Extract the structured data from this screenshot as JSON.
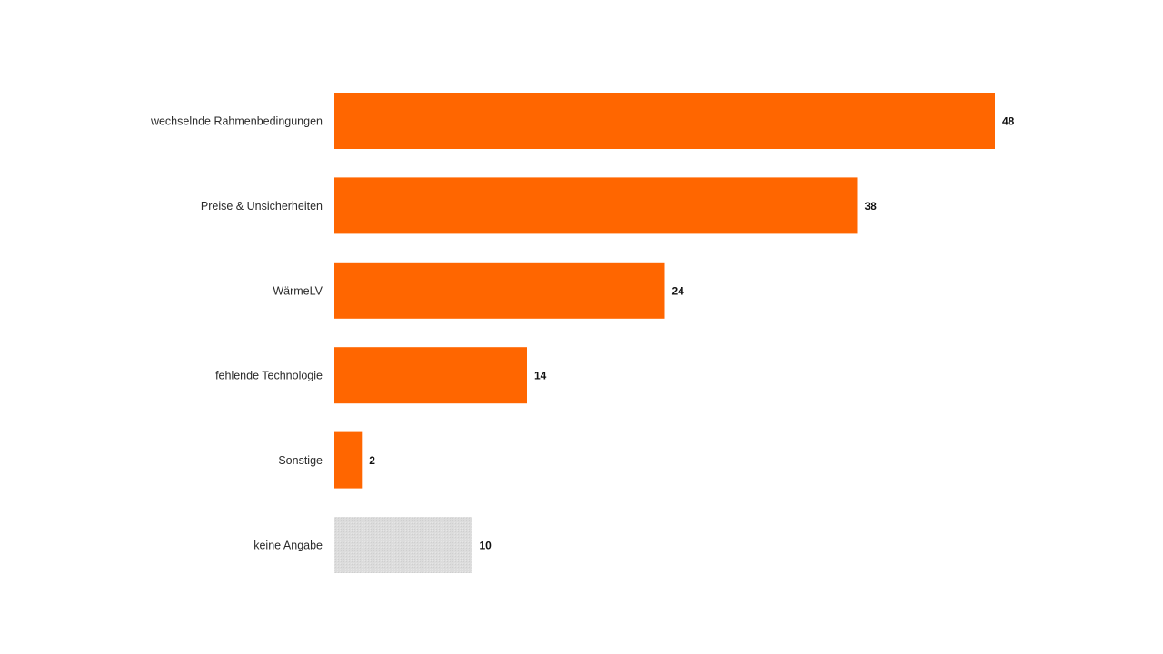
{
  "colors": {
    "primary": "#ff6600",
    "neutral": "#d9d9d9",
    "text": "#2b2b2b",
    "value_text": "#111111"
  },
  "chart_data": {
    "type": "bar",
    "orientation": "horizontal",
    "title": "",
    "xlabel": "",
    "ylabel": "",
    "categories": [
      "wechselnde Rahmenbedingungen",
      "Preise & Unsicherheiten",
      "WärmeLV",
      "fehlende Technologie",
      "Sonstige",
      "keine Angabe"
    ],
    "values": [
      48,
      38,
      24,
      14,
      2,
      10
    ],
    "bar_colors": [
      "#ff6600",
      "#ff6600",
      "#ff6600",
      "#ff6600",
      "#ff6600",
      "#d9d9d9"
    ],
    "xlim": [
      0,
      48
    ],
    "grid": false,
    "legend": "none",
    "data_labels": true
  }
}
